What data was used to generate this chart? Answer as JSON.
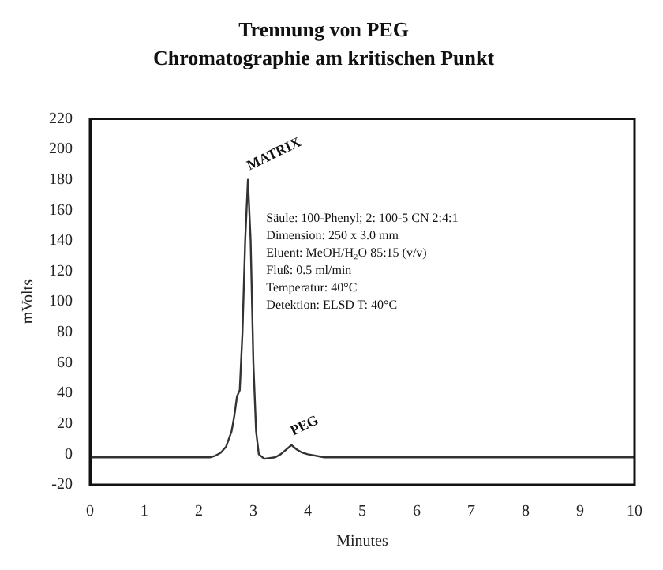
{
  "chart_data": {
    "type": "line",
    "title": "Trennung von PEG",
    "subtitle": "Chromatographie am kritischen Punkt",
    "xlabel": "Minutes",
    "ylabel": "mVolts",
    "series": [
      {
        "color": "#333333",
        "x": [
          0,
          1,
          2,
          2.2,
          2.3,
          2.4,
          2.5,
          2.6,
          2.65,
          2.7,
          2.75,
          2.8,
          2.85,
          2.9,
          2.95,
          3.0,
          3.05,
          3.1,
          3.2,
          3.4,
          3.5,
          3.6,
          3.7,
          3.8,
          3.9,
          4.0,
          4.3,
          5,
          6,
          7,
          8,
          9,
          10
        ],
        "values": [
          -2,
          -2,
          -2,
          -2,
          -1,
          1,
          5,
          15,
          25,
          38,
          42,
          80,
          140,
          180,
          140,
          60,
          15,
          0,
          -3,
          -2,
          0,
          3,
          6,
          3,
          1,
          0,
          -2,
          -2,
          -2,
          -2,
          -2,
          -2,
          -2
        ]
      }
    ],
    "xlim": [
      0,
      10
    ],
    "xticks": [
      0,
      1,
      2,
      3,
      4,
      5,
      6,
      7,
      8,
      9,
      10
    ],
    "ylim": [
      -20,
      220
    ],
    "yticks": [
      -20,
      0,
      20,
      40,
      60,
      80,
      100,
      120,
      140,
      160,
      180,
      200,
      220
    ],
    "grid": false,
    "legend": false,
    "marker": "none",
    "line_style": "solid",
    "annotations": [
      {
        "text": "MATRIX",
        "x": 2.9,
        "y": 180
      },
      {
        "text": "PEG",
        "x": 3.7,
        "y": 6
      },
      "Säule: 100-Phenyl; 2: 100-5 CN 2:4:1",
      "Dimension: 250 x 3.0 mm",
      "Eluent: MeOH/H₂O 85:15 (v/v)",
      "Fluß: 0.5 ml/min",
      "Temperatur: 40°C",
      "Detektion: ELSD T: 40°C"
    ]
  }
}
